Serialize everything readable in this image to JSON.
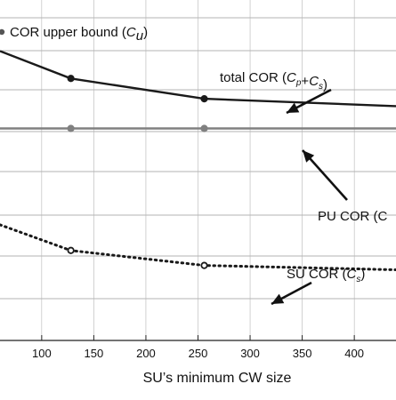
{
  "chart_data": {
    "type": "line",
    "xlabel": "SU’s minimum CW size",
    "x_ticks": [
      100,
      150,
      200,
      250,
      300,
      350,
      400
    ],
    "xlim": [
      60,
      440
    ],
    "ylim": [
      0,
      1
    ],
    "grid": "horizontal",
    "legend": {
      "position": "top-left",
      "entries": [
        {
          "text": "COR upper bound (",
          "var": "C",
          "sub": "u",
          "close": ")"
        }
      ]
    },
    "series": [
      {
        "name": "total COR",
        "style": "solid",
        "color": "#1a1a1a",
        "x": [
          60,
          128,
          256,
          440
        ],
        "y": [
          0.868,
          0.786,
          0.725,
          0.703
        ],
        "marker_x": [
          128,
          256
        ],
        "marker_y": [
          0.786,
          0.725
        ]
      },
      {
        "name": "PU COR",
        "style": "solid",
        "color": "#808080",
        "x": [
          60,
          128,
          256,
          440
        ],
        "y": [
          0.636,
          0.636,
          0.636,
          0.636
        ],
        "marker_x": [
          128,
          256
        ],
        "marker_y": [
          0.636,
          0.636
        ]
      },
      {
        "name": "SU COR",
        "style": "dotted",
        "color": "#1a1a1a",
        "x": [
          60,
          128,
          256,
          440
        ],
        "y": [
          0.347,
          0.27,
          0.225,
          0.212
        ],
        "marker_x": [
          128,
          256
        ],
        "marker_y": [
          0.27,
          0.225
        ]
      }
    ],
    "annotations": [
      {
        "id": "total",
        "text": "total COR (",
        "sub_parts": [
          [
            "C",
            "p"
          ],
          [
            "+",
            ""
          ],
          [
            "C",
            "s"
          ]
        ],
        "close": ")"
      },
      {
        "id": "pu",
        "text": "PU COR (C"
      },
      {
        "id": "su",
        "text": "SU COR (",
        "var": "C",
        "sub": "s",
        "close": ")"
      }
    ]
  }
}
